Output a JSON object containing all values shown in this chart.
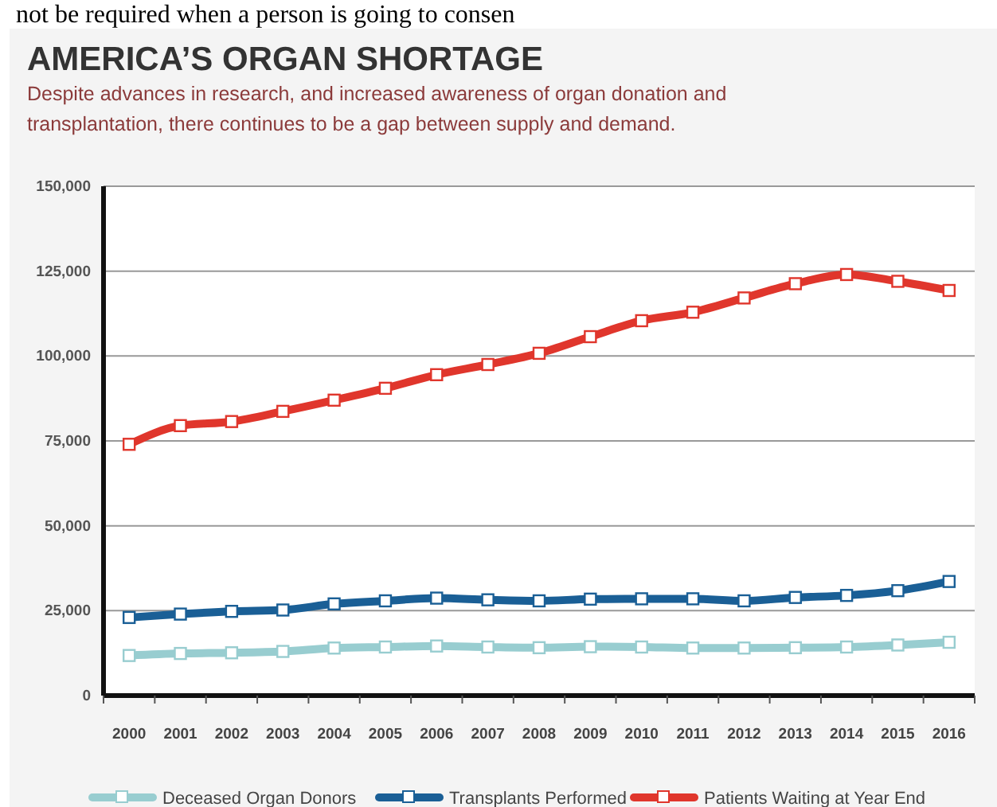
{
  "chart_data": {
    "type": "line",
    "title": "AMERICA’S ORGAN SHORTAGE",
    "subtitle": "Despite advances in research, and increased awareness of organ donation and transplantation, there continues to be a gap between supply and demand.",
    "annotations": [
      "not be required when a person is going to consen"
    ],
    "categories": [
      "2000",
      "2001",
      "2002",
      "2003",
      "2004",
      "2005",
      "2006",
      "2007",
      "2008",
      "2009",
      "2010",
      "2011",
      "2012",
      "2013",
      "2014",
      "2015",
      "2016"
    ],
    "series": [
      {
        "name": "Deceased Organ Donors",
        "color": "#98cdd0",
        "values": [
          11800,
          12400,
          12600,
          13000,
          14000,
          14300,
          14600,
          14300,
          14100,
          14400,
          14300,
          14000,
          14000,
          14100,
          14300,
          14900,
          15700
        ]
      },
      {
        "name": "Transplants Performed",
        "color": "#1a5f96",
        "values": [
          23000,
          24000,
          24800,
          25200,
          27000,
          27900,
          28700,
          28200,
          27900,
          28400,
          28500,
          28500,
          27900,
          28900,
          29500,
          30900,
          33600
        ]
      },
      {
        "name": "Patients Waiting at Year End",
        "color": "#e0362c",
        "values": [
          74000,
          79500,
          80700,
          83700,
          87000,
          90500,
          94500,
          97500,
          100800,
          105700,
          110400,
          112900,
          117100,
          121300,
          124000,
          122000,
          119300
        ]
      }
    ],
    "ylim": [
      0,
      150000
    ],
    "yticks": [
      0,
      {
        "value": 25000,
        "label": "25,000"
      },
      {
        "value": 50000,
        "label": "50,000"
      },
      {
        "value": 75000,
        "label": "75,000"
      },
      {
        "value": 100000,
        "label": "100,000"
      },
      {
        "value": 125000,
        "label": "125,000"
      },
      {
        "value": 150000,
        "label": "150,000"
      }
    ],
    "grid": "y",
    "legend": "bottom",
    "marker": "square",
    "line_style": "solid"
  }
}
